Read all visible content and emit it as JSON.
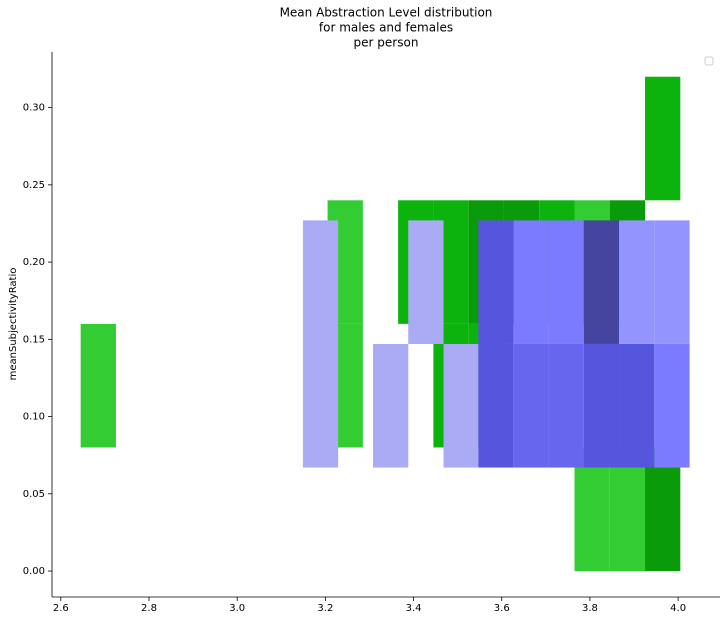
{
  "chart_data": {
    "type": "histogram2d",
    "title": [
      "Mean Abstraction Level distribution",
      "for males and females",
      "per person"
    ],
    "ylabel": "meanSubjectivityRatio",
    "xlim": [
      2.58,
      4.095
    ],
    "ylim": [
      -0.0168,
      0.336
    ],
    "xticks": [
      2.6,
      2.8,
      {
        "value": 3,
        "label": "3.0"
      },
      3.2,
      3.4,
      3.6,
      3.8,
      {
        "value": 4,
        "label": "4.0"
      }
    ],
    "yticks": [
      {
        "value": 0,
        "label": "0.00"
      },
      {
        "value": 0.05,
        "label": "0.05"
      },
      {
        "value": 0.1,
        "label": "0.10"
      },
      {
        "value": 0.15,
        "label": "0.15"
      },
      {
        "value": 0.2,
        "label": "0.20"
      },
      {
        "value": 0.25,
        "label": "0.25"
      },
      {
        "value": 0.3,
        "label": "0.30"
      }
    ],
    "legend": "upper right",
    "series": [
      {
        "colors": [
          "#33cc33",
          "#0db30d",
          "#099b09"
        ],
        "xbins": [
          2.645,
          2.725,
          2.805,
          2.885,
          2.965,
          3.045,
          3.125,
          3.205,
          3.285,
          3.365,
          3.445,
          3.525,
          3.605,
          3.685,
          3.765,
          3.845,
          3.925,
          4.005
        ],
        "ybins": [
          0,
          0.08,
          0.16,
          0.24,
          0.32
        ],
        "counts": [
          [
            null,
            null,
            null,
            null,
            null,
            null,
            null,
            null,
            null,
            null,
            null,
            null,
            null,
            null,
            1,
            1,
            3
          ],
          [
            1,
            null,
            null,
            null,
            null,
            null,
            null,
            1,
            null,
            null,
            2,
            2,
            null,
            null,
            null,
            null,
            null
          ],
          [
            null,
            null,
            null,
            null,
            null,
            null,
            null,
            1,
            null,
            2,
            2,
            3,
            3,
            2,
            1,
            3,
            null
          ],
          [
            null,
            null,
            null,
            null,
            null,
            null,
            null,
            null,
            null,
            null,
            null,
            null,
            null,
            null,
            null,
            null,
            2
          ]
        ]
      },
      {
        "colors": [
          "#aaaaf5",
          "#9494ff",
          "#7b7bff",
          "#6666ee",
          "#5555dd",
          "#45459f"
        ],
        "xbins": [
          3.149,
          3.229,
          3.308,
          3.388,
          3.468,
          3.547,
          3.627,
          3.707,
          3.786,
          3.866,
          3.946,
          4.026
        ],
        "ybins": [
          0.067,
          0.147,
          0.227
        ],
        "counts": [
          [
            1,
            null,
            1,
            null,
            1,
            5,
            4,
            4,
            5,
            5,
            3
          ],
          [
            1,
            null,
            null,
            1,
            null,
            5,
            3,
            3,
            6,
            2,
            2
          ]
        ]
      }
    ]
  }
}
